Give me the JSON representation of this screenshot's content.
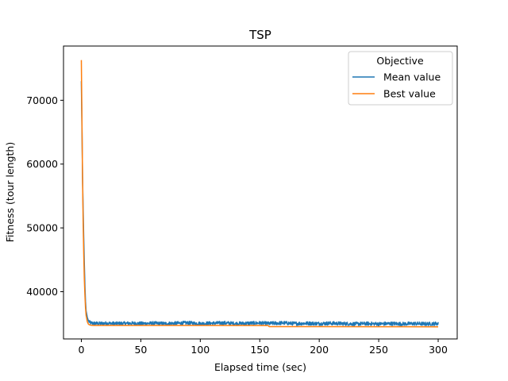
{
  "chart_data": {
    "type": "line",
    "title": "TSP",
    "xlabel": "Elapsed time (sec)",
    "ylabel": "Fitness (tour length)",
    "xlim": [
      -15,
      316
    ],
    "ylim": [
      32600,
      78500
    ],
    "xticks": [
      0,
      50,
      100,
      150,
      200,
      250,
      300
    ],
    "yticks": [
      40000,
      50000,
      60000,
      70000
    ],
    "grid": false,
    "legend": {
      "title": "Objective",
      "placement": "top-right"
    },
    "series": [
      {
        "name": "Mean value",
        "color": "#1f77b4",
        "x": [
          0,
          0.5,
          1,
          1.5,
          2,
          2.5,
          3,
          3.5,
          4,
          5,
          6,
          7,
          8,
          10,
          15,
          20,
          30,
          40,
          50,
          60,
          70,
          80,
          90,
          100,
          110,
          120,
          130,
          140,
          150,
          158,
          160,
          170,
          180,
          190,
          200,
          210,
          220,
          230,
          240,
          250,
          260,
          270,
          280,
          290,
          300
        ],
        "values": [
          73000,
          66000,
          58000,
          53000,
          48500,
          44500,
          41000,
          38500,
          37000,
          36000,
          35400,
          35200,
          35100,
          35050,
          35000,
          35050,
          35000,
          35050,
          35000,
          35050,
          35000,
          35050,
          35100,
          35000,
          35050,
          35100,
          35000,
          35050,
          35100,
          35000,
          35050,
          35100,
          35000,
          35050,
          35000,
          35050,
          35000,
          34950,
          35000,
          34950,
          35000,
          34950,
          35000,
          34950,
          35000
        ],
        "noise_amplitude": 280
      },
      {
        "name": "Best value",
        "color": "#ff7f0e",
        "x": [
          0,
          0.5,
          1,
          1.5,
          2,
          2.5,
          3,
          3.5,
          4,
          5,
          6,
          7,
          8,
          10,
          50,
          100,
          157,
          158,
          200,
          250,
          300
        ],
        "values": [
          76300,
          67000,
          58000,
          51000,
          46000,
          42000,
          39500,
          37500,
          36300,
          35300,
          34900,
          34800,
          34750,
          34720,
          34720,
          34710,
          34700,
          34520,
          34520,
          34510,
          34500
        ]
      }
    ]
  }
}
